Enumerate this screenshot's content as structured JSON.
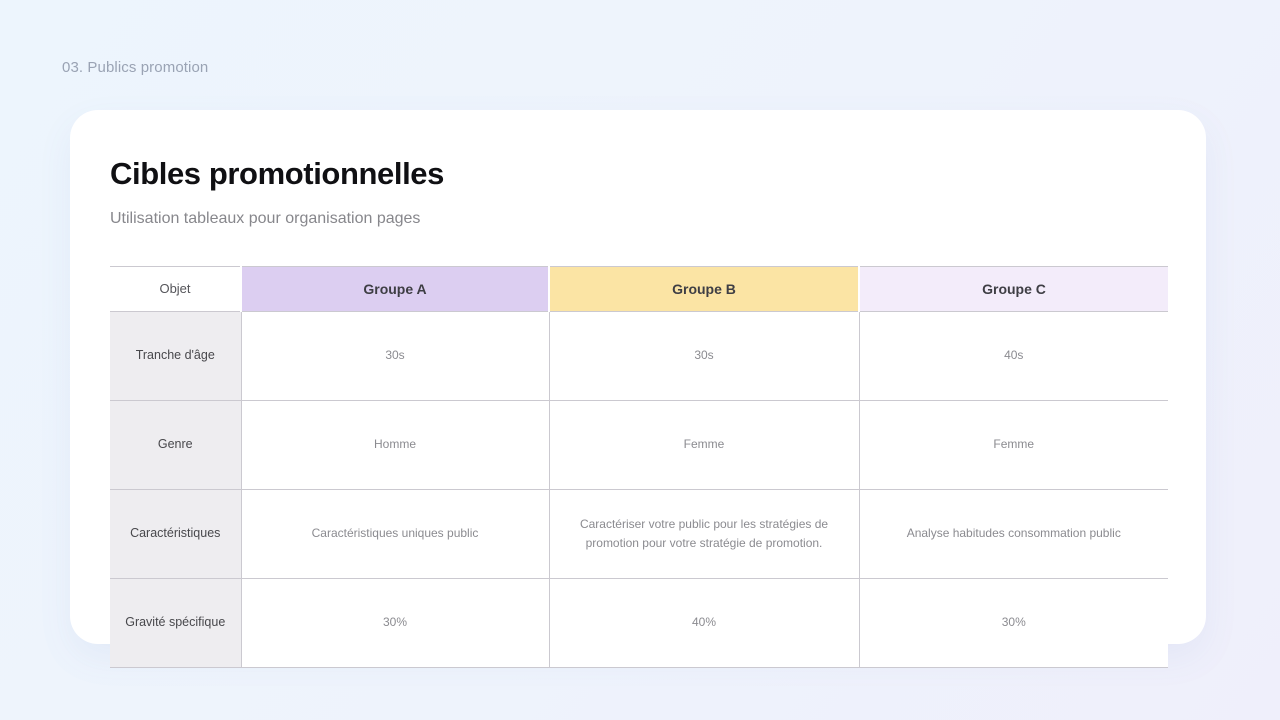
{
  "page": {
    "slide_label": "03. Publics promotion"
  },
  "card": {
    "title": "Cibles promotionnelles",
    "subtitle": "Utilisation tableaux pour organisation pages"
  },
  "table": {
    "header": {
      "objet": "Objet",
      "groups": [
        {
          "label": "Groupe A",
          "bg": "#dccef1"
        },
        {
          "label": "Groupe B",
          "bg": "#fbe4a4"
        },
        {
          "label": "Groupe C",
          "bg": "#f3ecfa"
        }
      ]
    },
    "rows": [
      {
        "label": "Tranche d'âge",
        "values": [
          "30s",
          "30s",
          "40s"
        ]
      },
      {
        "label": "Genre",
        "values": [
          "Homme",
          "Femme",
          "Femme"
        ]
      },
      {
        "label": "Caractéristiques",
        "values": [
          "Caractéristiques uniques public",
          "Caractériser votre public pour les stratégies de promotion pour votre stratégie de promotion.",
          "Analyse habitudes consommation public"
        ]
      },
      {
        "label": "Gravité spécifique",
        "values": [
          "30%",
          "40%",
          "30%"
        ]
      }
    ]
  },
  "colors": {
    "page_background_start": "#edf5fd",
    "page_background_end": "#efeffb",
    "card_background": "#ffffff",
    "group_a_header": "#dccef1",
    "group_b_header": "#fbe4a4",
    "group_c_header": "#f3ecfa",
    "row_label_background": "#eeedf0",
    "table_border": "#cbc9d0",
    "title_text": "#101013",
    "muted_text": "#8b8b90"
  }
}
